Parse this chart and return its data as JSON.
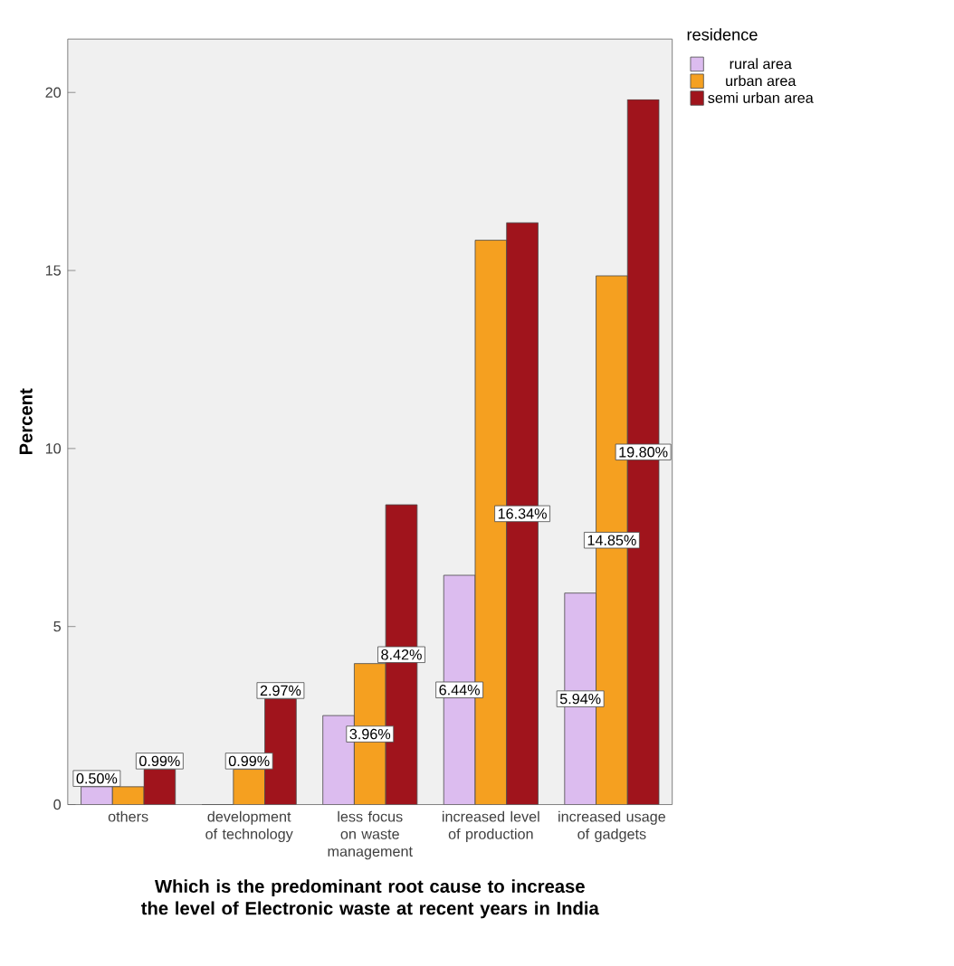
{
  "chart_data": {
    "type": "bar",
    "xlabel": "Which is the predominant root cause to  increase the level of Electronic waste at recent years in India",
    "ylabel": "Percent",
    "legend_title": "residence",
    "legend": "top right",
    "categories": [
      "others",
      "development of technology",
      "less focus on waste management",
      "increased level of production",
      "increased usage of gadgets"
    ],
    "series": [
      {
        "name": "rural area",
        "color": "#dcbcef",
        "values": [
          0.5,
          0,
          2.5,
          6.44,
          5.94
        ],
        "value_labels": [
          "0.50%",
          null,
          null,
          "6.44%",
          "5.94%"
        ]
      },
      {
        "name": "urban area",
        "color": "#f5a020",
        "values": [
          0.5,
          0.99,
          3.96,
          15.85,
          14.85
        ],
        "value_labels": [
          null,
          "0.99%",
          "3.96%",
          null,
          "14.85%"
        ]
      },
      {
        "name": "semi urban area",
        "color": "#a0141c",
        "values": [
          0.99,
          2.97,
          8.42,
          16.34,
          19.8
        ],
        "value_labels": [
          "0.99%",
          "2.97%",
          "8.42%",
          "16.34%",
          "19.80%"
        ]
      }
    ],
    "ylim": [
      0,
      21.5
    ],
    "yticks": [
      0,
      5,
      10,
      15,
      20
    ],
    "grid": false
  }
}
